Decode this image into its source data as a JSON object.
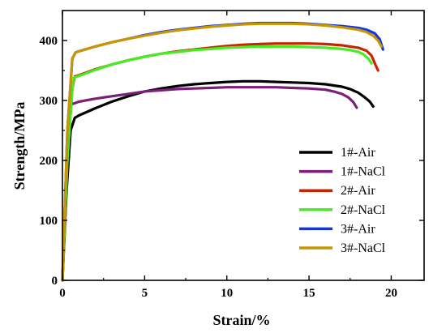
{
  "chart_data": {
    "type": "line",
    "title": "",
    "xlabel": "Strain/%",
    "ylabel": "Strength/MPa",
    "xlim": [
      0,
      22
    ],
    "ylim": [
      0,
      450
    ],
    "xticks": [
      0,
      5,
      10,
      15,
      20
    ],
    "yticks": [
      0,
      100,
      200,
      300,
      400
    ],
    "grid": false,
    "legend_position": "bottom-right",
    "series": [
      {
        "name": "1#-Air",
        "color": "#000000",
        "x": [
          0,
          0.25,
          0.5,
          0.75,
          1.0,
          2,
          3,
          4,
          5,
          6,
          7,
          8,
          9,
          10,
          11,
          12,
          13,
          14,
          15,
          16,
          17,
          17.5,
          18.0,
          18.4,
          18.7,
          18.9
        ],
        "y": [
          0,
          150,
          250,
          271,
          275,
          287,
          298,
          307,
          315,
          320,
          324,
          327,
          329,
          331,
          332,
          332,
          331,
          330,
          329,
          327,
          323,
          319,
          313,
          305,
          298,
          290
        ]
      },
      {
        "name": "1#-NaCl",
        "color": "#7a1f7a",
        "x": [
          0,
          0.2,
          0.4,
          0.5,
          0.6,
          0.8,
          1,
          2,
          3,
          4,
          5,
          6,
          7,
          8,
          9,
          10,
          11,
          12,
          13,
          14,
          15,
          16,
          16.5,
          17.0,
          17.4,
          17.7,
          17.9
        ],
        "y": [
          0,
          150,
          260,
          300,
          294,
          296,
          298,
          303,
          307,
          311,
          315,
          317,
          319,
          320,
          321,
          322,
          322,
          322,
          322,
          321,
          320,
          318,
          315,
          311,
          305,
          297,
          288
        ]
      },
      {
        "name": "2#-Air",
        "color": "#cc2200",
        "x": [
          0,
          0.3,
          0.6,
          0.75,
          1,
          2,
          3,
          4,
          5,
          6,
          7,
          8,
          9,
          10,
          11,
          12,
          13,
          14,
          15,
          16,
          17,
          18,
          18.5,
          18.8,
          19.0,
          19.2
        ],
        "y": [
          0,
          200,
          320,
          340,
          342,
          352,
          360,
          367,
          373,
          378,
          382,
          385,
          388,
          391,
          393,
          394,
          395,
          395,
          395,
          394,
          392,
          388,
          383,
          375,
          362,
          350
        ]
      },
      {
        "name": "2#-NaCl",
        "color": "#44ee22",
        "x": [
          0,
          0.3,
          0.6,
          0.7,
          1,
          2,
          3,
          4,
          5,
          6,
          7,
          8,
          9,
          10,
          11,
          12,
          13,
          14,
          15,
          16,
          17,
          17.5,
          18.0,
          18.3,
          18.6,
          18.8
        ],
        "y": [
          0,
          200,
          320,
          338,
          341,
          351,
          360,
          367,
          373,
          378,
          381,
          384,
          386,
          388,
          389,
          390,
          390,
          390,
          389,
          388,
          386,
          384,
          381,
          377,
          370,
          362
        ]
      },
      {
        "name": "3#-Air",
        "color": "#1133ee",
        "x": [
          0,
          0.3,
          0.6,
          0.8,
          1,
          2,
          3,
          4,
          5,
          6,
          7,
          8,
          9,
          10,
          11,
          12,
          13,
          14,
          15,
          16,
          17,
          18,
          18.5,
          19.0,
          19.3,
          19.5
        ],
        "y": [
          0,
          250,
          370,
          380,
          382,
          390,
          397,
          403,
          409,
          414,
          418,
          421,
          424,
          426,
          428,
          429,
          429,
          429,
          428,
          426,
          424,
          421,
          418,
          412,
          402,
          385
        ]
      },
      {
        "name": "3#-NaCl",
        "color": "#c89600",
        "x": [
          0,
          0.3,
          0.6,
          0.8,
          1,
          2,
          3,
          4,
          5,
          6,
          7,
          8,
          9,
          10,
          11,
          12,
          13,
          14,
          15,
          16,
          17,
          18,
          18.5,
          18.9,
          19.2,
          19.4
        ],
        "y": [
          0,
          250,
          370,
          380,
          382,
          390,
          397,
          403,
          408,
          413,
          417,
          420,
          423,
          425,
          427,
          428,
          428,
          428,
          427,
          425,
          422,
          418,
          414,
          408,
          400,
          390
        ]
      }
    ]
  }
}
